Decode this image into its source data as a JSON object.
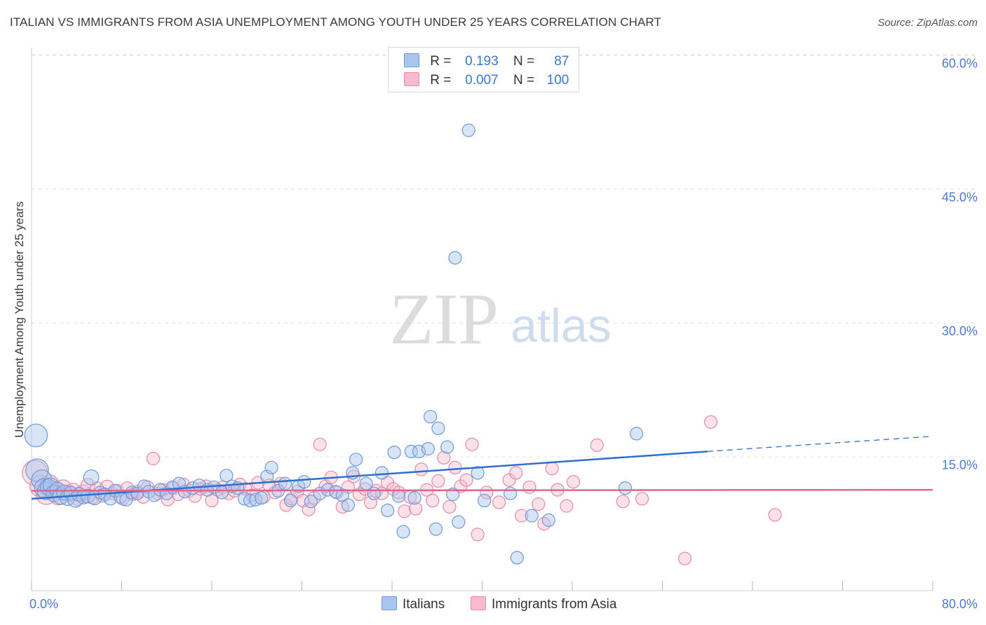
{
  "title": "ITALIAN VS IMMIGRANTS FROM ASIA UNEMPLOYMENT AMONG YOUTH UNDER 25 YEARS CORRELATION CHART",
  "source": "Source: ZipAtlas.com",
  "watermark": {
    "zip": "ZIP",
    "atlas": "atlas"
  },
  "legend": {
    "rows": [
      {
        "r_label": "R =",
        "r_value": "0.193",
        "n_label": "N =",
        "n_value": "87"
      },
      {
        "r_label": "R =",
        "r_value": "0.007",
        "n_label": "N =",
        "n_value": "100"
      }
    ]
  },
  "bottom_legend": {
    "italians": "Italians",
    "asia": "Immigrants from Asia"
  },
  "colors": {
    "italians_fill": "#a9c6ee",
    "italians_stroke": "#6f9ad8",
    "italians_line": "#2f6fcf",
    "asia_fill": "#f6bccd",
    "asia_stroke": "#e68aa8",
    "asia_line": "#e0668c",
    "axis_text": "#4a7bd0",
    "grid": "#e2e2e2"
  },
  "chart_data": {
    "type": "scatter",
    "title": "ITALIAN VS IMMIGRANTS FROM ASIA UNEMPLOYMENT AMONG YOUTH UNDER 25 YEARS CORRELATION CHART",
    "xlabel": "",
    "ylabel": "Unemployment Among Youth under 25 years",
    "xlim": [
      0,
      80
    ],
    "ylim": [
      0,
      60
    ],
    "x_tick_labels": [
      "0.0%",
      "80.0%"
    ],
    "y_ticks": [
      15,
      30,
      45,
      60
    ],
    "y_tick_labels": [
      "15.0%",
      "30.0%",
      "45.0%",
      "60.0%"
    ],
    "grid": true,
    "legend_placement": "top-center",
    "series": [
      {
        "name": "Italians",
        "r": 0.193,
        "n": 87,
        "trend": {
          "x": [
            0,
            60,
            80
          ],
          "y": [
            10.3,
            15.6,
            17.3
          ],
          "solid_until_x": 60
        },
        "points": [
          [
            0.4,
            17.4,
            1.8
          ],
          [
            0.5,
            13.5,
            1.8
          ],
          [
            0.9,
            12.4,
            1.6
          ],
          [
            1.1,
            11.5,
            1.5
          ],
          [
            1.3,
            11.2,
            1.4
          ],
          [
            1.5,
            11.6,
            1.3
          ],
          [
            1.7,
            11.8,
            1.2
          ],
          [
            2.0,
            10.9,
            1.3
          ],
          [
            2.3,
            11.3,
            1.2
          ],
          [
            2.6,
            10.6,
            1.3
          ],
          [
            2.9,
            11.0,
            1.2
          ],
          [
            3.2,
            10.4,
            1.2
          ],
          [
            3.5,
            10.9,
            1.1
          ],
          [
            3.9,
            10.2,
            1.2
          ],
          [
            4.2,
            10.8,
            1.1
          ],
          [
            4.6,
            10.5,
            1.1
          ],
          [
            5.0,
            10.6,
            1.1
          ],
          [
            5.3,
            12.7,
            1.2
          ],
          [
            5.6,
            10.4,
            1.1
          ],
          [
            6.1,
            11.0,
            1.0
          ],
          [
            6.5,
            10.8,
            1.0
          ],
          [
            7.0,
            10.3,
            1.0
          ],
          [
            7.4,
            11.2,
            1.0
          ],
          [
            7.9,
            10.5,
            1.0
          ],
          [
            8.4,
            10.2,
            1.0
          ],
          [
            8.9,
            11.0,
            1.0
          ],
          [
            9.4,
            10.9,
            1.0
          ],
          [
            10.0,
            11.7,
            1.0
          ],
          [
            10.4,
            11.1,
            1.0
          ],
          [
            10.9,
            10.7,
            1.0
          ],
          [
            11.4,
            11.3,
            1.0
          ],
          [
            12.0,
            10.9,
            1.0
          ],
          [
            12.5,
            11.6,
            1.0
          ],
          [
            13.1,
            12.0,
            1.0
          ],
          [
            13.6,
            11.1,
            1.0
          ],
          [
            14.3,
            11.5,
            1.0
          ],
          [
            14.9,
            11.8,
            1.0
          ],
          [
            15.6,
            11.3,
            1.0
          ],
          [
            16.2,
            11.6,
            1.0
          ],
          [
            16.9,
            11.0,
            1.0
          ],
          [
            17.3,
            12.9,
            1.0
          ],
          [
            17.8,
            11.7,
            1.0
          ],
          [
            18.3,
            11.5,
            1.0
          ],
          [
            18.9,
            10.3,
            1.0
          ],
          [
            19.4,
            10.1,
            1.0
          ],
          [
            19.9,
            10.2,
            1.0
          ],
          [
            20.4,
            10.4,
            1.0
          ],
          [
            20.9,
            12.8,
            1.0
          ],
          [
            21.3,
            13.8,
            1.0
          ],
          [
            21.9,
            11.2,
            1.0
          ],
          [
            22.5,
            12.0,
            1.0
          ],
          [
            23.0,
            10.1,
            1.0
          ],
          [
            23.7,
            11.7,
            1.0
          ],
          [
            24.2,
            12.2,
            1.0
          ],
          [
            24.8,
            10.0,
            1.0
          ],
          [
            25.6,
            10.9,
            1.0
          ],
          [
            26.3,
            11.3,
            1.0
          ],
          [
            27.0,
            11.1,
            1.0
          ],
          [
            27.6,
            10.7,
            1.0
          ],
          [
            28.1,
            9.6,
            1.0
          ],
          [
            28.5,
            13.2,
            1.0
          ],
          [
            28.8,
            14.7,
            1.0
          ],
          [
            29.7,
            12.0,
            1.0
          ],
          [
            30.4,
            10.9,
            1.0
          ],
          [
            31.1,
            13.2,
            1.0
          ],
          [
            31.6,
            9.0,
            1.0
          ],
          [
            32.2,
            15.5,
            1.0
          ],
          [
            32.6,
            10.6,
            1.0
          ],
          [
            33.0,
            6.6,
            1.0
          ],
          [
            33.7,
            15.6,
            1.0
          ],
          [
            34.0,
            10.4,
            1.0
          ],
          [
            34.4,
            15.6,
            1.0
          ],
          [
            35.2,
            15.9,
            1.0
          ],
          [
            35.4,
            19.5,
            1.0
          ],
          [
            35.9,
            6.9,
            1.0
          ],
          [
            36.1,
            18.2,
            1.0
          ],
          [
            36.9,
            16.1,
            1.0
          ],
          [
            37.4,
            10.8,
            1.0
          ],
          [
            37.6,
            37.3,
            1.0
          ],
          [
            37.9,
            7.7,
            1.0
          ],
          [
            38.8,
            51.6,
            1.0
          ],
          [
            39.6,
            13.2,
            1.0
          ],
          [
            40.2,
            10.1,
            1.0
          ],
          [
            42.5,
            10.9,
            1.0
          ],
          [
            43.1,
            3.7,
            1.0
          ],
          [
            44.4,
            8.4,
            1.0
          ],
          [
            45.9,
            7.9,
            1.0
          ],
          [
            52.7,
            11.5,
            1.0
          ],
          [
            53.7,
            17.6,
            1.0
          ]
        ]
      },
      {
        "name": "Immigrants from Asia",
        "r": 0.007,
        "n": 100,
        "trend": {
          "x": [
            0,
            80
          ],
          "y": [
            11.2,
            11.3
          ]
        },
        "points": [
          [
            0.3,
            13.2,
            2.0
          ],
          [
            0.8,
            11.7,
            1.7
          ],
          [
            1.3,
            10.8,
            1.6
          ],
          [
            1.6,
            11.9,
            1.5
          ],
          [
            2.0,
            11.3,
            1.4
          ],
          [
            2.4,
            10.6,
            1.4
          ],
          [
            2.8,
            11.5,
            1.3
          ],
          [
            3.3,
            10.9,
            1.3
          ],
          [
            3.7,
            11.2,
            1.2
          ],
          [
            4.1,
            10.4,
            1.2
          ],
          [
            4.6,
            11.0,
            1.2
          ],
          [
            5.0,
            11.8,
            1.1
          ],
          [
            5.4,
            10.5,
            1.1
          ],
          [
            5.8,
            11.4,
            1.1
          ],
          [
            6.3,
            10.7,
            1.1
          ],
          [
            6.7,
            11.6,
            1.1
          ],
          [
            7.2,
            10.9,
            1.0
          ],
          [
            7.6,
            11.2,
            1.0
          ],
          [
            8.1,
            10.3,
            1.0
          ],
          [
            8.5,
            11.5,
            1.0
          ],
          [
            9.0,
            10.8,
            1.0
          ],
          [
            9.4,
            11.1,
            1.0
          ],
          [
            9.9,
            10.5,
            1.0
          ],
          [
            10.3,
            11.6,
            1.0
          ],
          [
            10.8,
            14.8,
            1.0
          ],
          [
            11.2,
            10.9,
            1.0
          ],
          [
            11.7,
            11.3,
            1.0
          ],
          [
            12.1,
            10.2,
            1.0
          ],
          [
            12.6,
            11.5,
            1.0
          ],
          [
            13.0,
            10.8,
            1.0
          ],
          [
            13.5,
            11.9,
            1.0
          ],
          [
            14.0,
            11.2,
            1.0
          ],
          [
            14.5,
            10.6,
            1.0
          ],
          [
            15.0,
            11.4,
            1.0
          ],
          [
            15.5,
            11.7,
            1.0
          ],
          [
            16.0,
            10.1,
            1.0
          ],
          [
            16.5,
            11.3,
            1.0
          ],
          [
            17.0,
            11.6,
            1.0
          ],
          [
            17.5,
            10.9,
            1.0
          ],
          [
            18.0,
            11.2,
            1.0
          ],
          [
            18.5,
            11.9,
            1.0
          ],
          [
            19.0,
            11.4,
            1.0
          ],
          [
            19.6,
            10.7,
            1.0
          ],
          [
            20.1,
            12.1,
            1.0
          ],
          [
            20.6,
            10.5,
            1.0
          ],
          [
            21.1,
            11.8,
            1.0
          ],
          [
            21.6,
            11.0,
            1.0
          ],
          [
            22.1,
            12.0,
            1.0
          ],
          [
            22.6,
            9.6,
            1.0
          ],
          [
            23.1,
            10.3,
            1.0
          ],
          [
            23.6,
            11.1,
            1.0
          ],
          [
            24.1,
            10.1,
            1.0
          ],
          [
            24.6,
            9.1,
            1.0
          ],
          [
            25.1,
            10.4,
            1.0
          ],
          [
            25.6,
            16.4,
            1.0
          ],
          [
            26.1,
            11.7,
            1.0
          ],
          [
            26.6,
            12.7,
            1.0
          ],
          [
            27.1,
            11.0,
            1.0
          ],
          [
            27.6,
            9.4,
            1.0
          ],
          [
            28.1,
            11.6,
            1.0
          ],
          [
            28.6,
            12.8,
            1.0
          ],
          [
            29.1,
            10.8,
            1.0
          ],
          [
            29.6,
            11.4,
            1.0
          ],
          [
            30.1,
            9.9,
            1.0
          ],
          [
            30.6,
            11.2,
            1.0
          ],
          [
            31.1,
            10.9,
            1.0
          ],
          [
            31.6,
            12.1,
            1.0
          ],
          [
            32.1,
            11.4,
            1.0
          ],
          [
            32.6,
            11.0,
            1.0
          ],
          [
            33.1,
            8.9,
            1.0
          ],
          [
            33.6,
            10.5,
            1.0
          ],
          [
            34.1,
            9.2,
            1.0
          ],
          [
            34.6,
            13.6,
            1.0
          ],
          [
            35.1,
            11.3,
            1.0
          ],
          [
            35.6,
            10.1,
            1.0
          ],
          [
            36.1,
            12.3,
            1.0
          ],
          [
            36.6,
            14.9,
            1.0
          ],
          [
            37.1,
            9.4,
            1.0
          ],
          [
            37.6,
            13.8,
            1.0
          ],
          [
            38.1,
            11.7,
            1.0
          ],
          [
            38.6,
            12.4,
            1.0
          ],
          [
            39.1,
            16.4,
            1.0
          ],
          [
            39.6,
            6.3,
            1.0
          ],
          [
            40.4,
            11.0,
            1.0
          ],
          [
            41.5,
            9.9,
            1.0
          ],
          [
            42.4,
            12.4,
            1.0
          ],
          [
            43.0,
            13.2,
            1.0
          ],
          [
            43.5,
            8.4,
            1.0
          ],
          [
            44.2,
            11.6,
            1.0
          ],
          [
            45.0,
            9.7,
            1.0
          ],
          [
            45.5,
            7.5,
            1.0
          ],
          [
            46.2,
            13.7,
            1.0
          ],
          [
            46.7,
            11.3,
            1.0
          ],
          [
            47.5,
            9.5,
            1.0
          ],
          [
            48.1,
            12.2,
            1.0
          ],
          [
            50.2,
            16.3,
            1.0
          ],
          [
            52.5,
            10.0,
            1.0
          ],
          [
            54.2,
            10.3,
            1.0
          ],
          [
            58.0,
            3.6,
            1.0
          ],
          [
            60.3,
            18.9,
            1.0
          ],
          [
            66.0,
            8.5,
            1.0
          ]
        ]
      }
    ]
  }
}
